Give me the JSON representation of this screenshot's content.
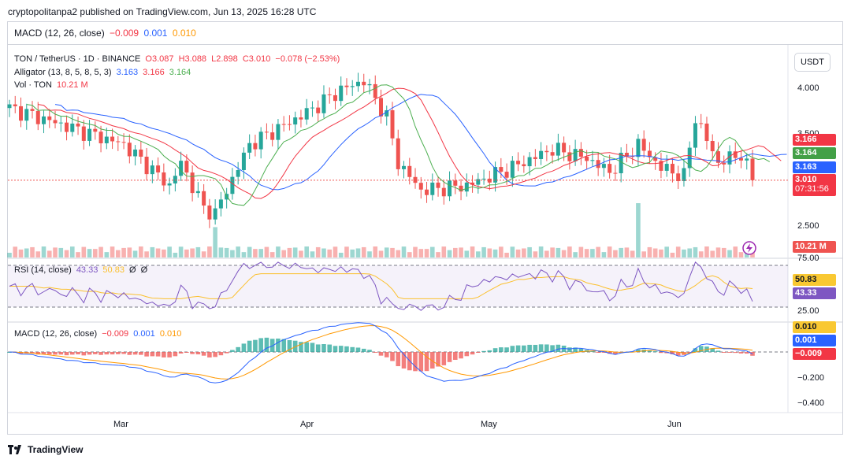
{
  "publish_line": "cryptopolitanpa2 published on TradingView.com, Jun 13, 2025 16:28 UTC",
  "header_macd": {
    "label": "MACD (12, 26, close)",
    "v1": "−0.009",
    "v2": "0.001",
    "v3": "0.010"
  },
  "main": {
    "symbol": "TON / TetherUS · 1D · BINANCE",
    "o": "O3.087",
    "h": "H3.088",
    "l": "L2.898",
    "c": "C3.010",
    "chg": "−0.078 (−2.53%)",
    "alligator_label": "Alligator (13, 8, 5, 8, 5, 3)",
    "jaw": "3.163",
    "teeth": "3.166",
    "lips": "3.164",
    "vol_label": "Vol · TON",
    "vol_value": "10.21 M",
    "currency_button": "USDT",
    "y_ticks": [
      "4.000",
      "3.500",
      "2.500"
    ],
    "price_tags": {
      "teeth": "3.166",
      "lips": "3.164",
      "jaw": "3.163",
      "price": "3.010",
      "countdown": "07:31:56",
      "vol": "10.21 M"
    }
  },
  "rsi": {
    "label": "RSI (14, close)",
    "v1": "43.33",
    "v2": "50.83",
    "v3": "Ø",
    "v4": "Ø",
    "upper": "75.00",
    "lower": "25.00",
    "tag_ma": "50.83",
    "tag_rsi": "43.33"
  },
  "macd": {
    "label": "MACD (12, 26, close)",
    "v1": "−0.009",
    "v2": "0.001",
    "v3": "0.010",
    "y_ticks": [
      "−0.200",
      "−0.400"
    ],
    "tags": {
      "signal": "0.010",
      "macd": "0.001",
      "hist": "−0.009"
    }
  },
  "x_labels": [
    "Mar",
    "Apr",
    "May",
    "Jun"
  ],
  "footer": "TradingView",
  "colors": {
    "up": "#26a69a",
    "down": "#ef5350",
    "jaw": "#2962ff",
    "teeth": "#f23645",
    "lips": "#4caf50",
    "rsi": "#7e57c2",
    "rsi_ma": "#fbc02d",
    "macd": "#2962ff",
    "signal": "#ff9800"
  }
}
